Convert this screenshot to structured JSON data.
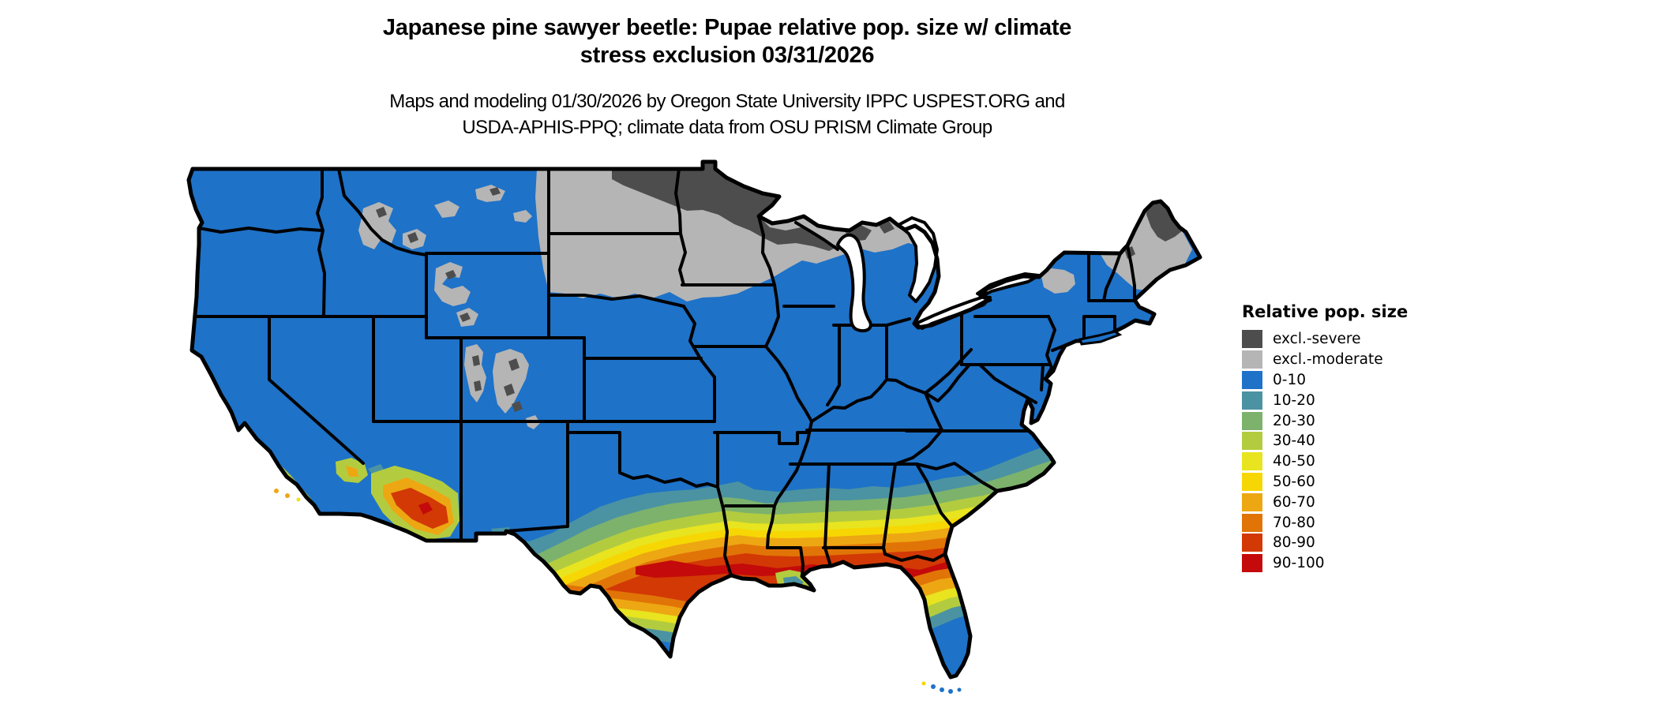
{
  "header": {
    "title_line1": "Japanese pine sawyer beetle: Pupae relative pop. size w/ climate",
    "title_line2": "stress exclusion 03/31/2026",
    "subtitle_line1": "Maps and modeling 01/30/2026 by Oregon State University IPPC USPEST.ORG and",
    "subtitle_line2": "USDA-APHIS-PPQ; climate data from OSU PRISM Climate Group"
  },
  "legend": {
    "title": "Relative pop. size",
    "items": [
      {
        "label": "excl.-severe",
        "color": "#4d4d4d"
      },
      {
        "label": "excl.-moderate",
        "color": "#b5b5b5"
      },
      {
        "label": "0-10",
        "color": "#1e72c8"
      },
      {
        "label": "10-20",
        "color": "#4b93a2"
      },
      {
        "label": "20-30",
        "color": "#7cb26c"
      },
      {
        "label": "30-40",
        "color": "#b3cc3f"
      },
      {
        "label": "40-50",
        "color": "#e8e41f"
      },
      {
        "label": "50-60",
        "color": "#f6d704"
      },
      {
        "label": "60-70",
        "color": "#eda713"
      },
      {
        "label": "70-80",
        "color": "#e17407"
      },
      {
        "label": "80-90",
        "color": "#d23905"
      },
      {
        "label": "90-100",
        "color": "#c40a0a"
      }
    ]
  },
  "map": {
    "region": "Contiguous United States with state boundaries",
    "type": "raster model output (relative population size classes)",
    "visible_patterns": [
      "Most of the northern, central and eastern interior U.S. mapped in the 0-10 class (blue)",
      "excl.-severe (dark gray) over eastern Montana/North Dakota border area, northern Minnesota, northern Wisconsin, upper Michigan and northern Maine",
      "excl.-moderate (light gray) band across the northern plains, South Dakota, southern Minnesota, central Wisconsin, and Rocky Mountain ranges in Idaho, Wyoming, Utah and Colorado; also Adirondacks and northern New England",
      "Warm gradient band (10 through 100) across Texas, the Gulf states, Georgia and the Carolina coast, peaking 80-100 along the central Gulf Coast and southern Atlantic coast",
      "Hot spots (60-100) in southern Arizona and coastal southern California",
      "South Texas and the Florida peninsula fall back to the 0-10 class (blue)"
    ]
  }
}
